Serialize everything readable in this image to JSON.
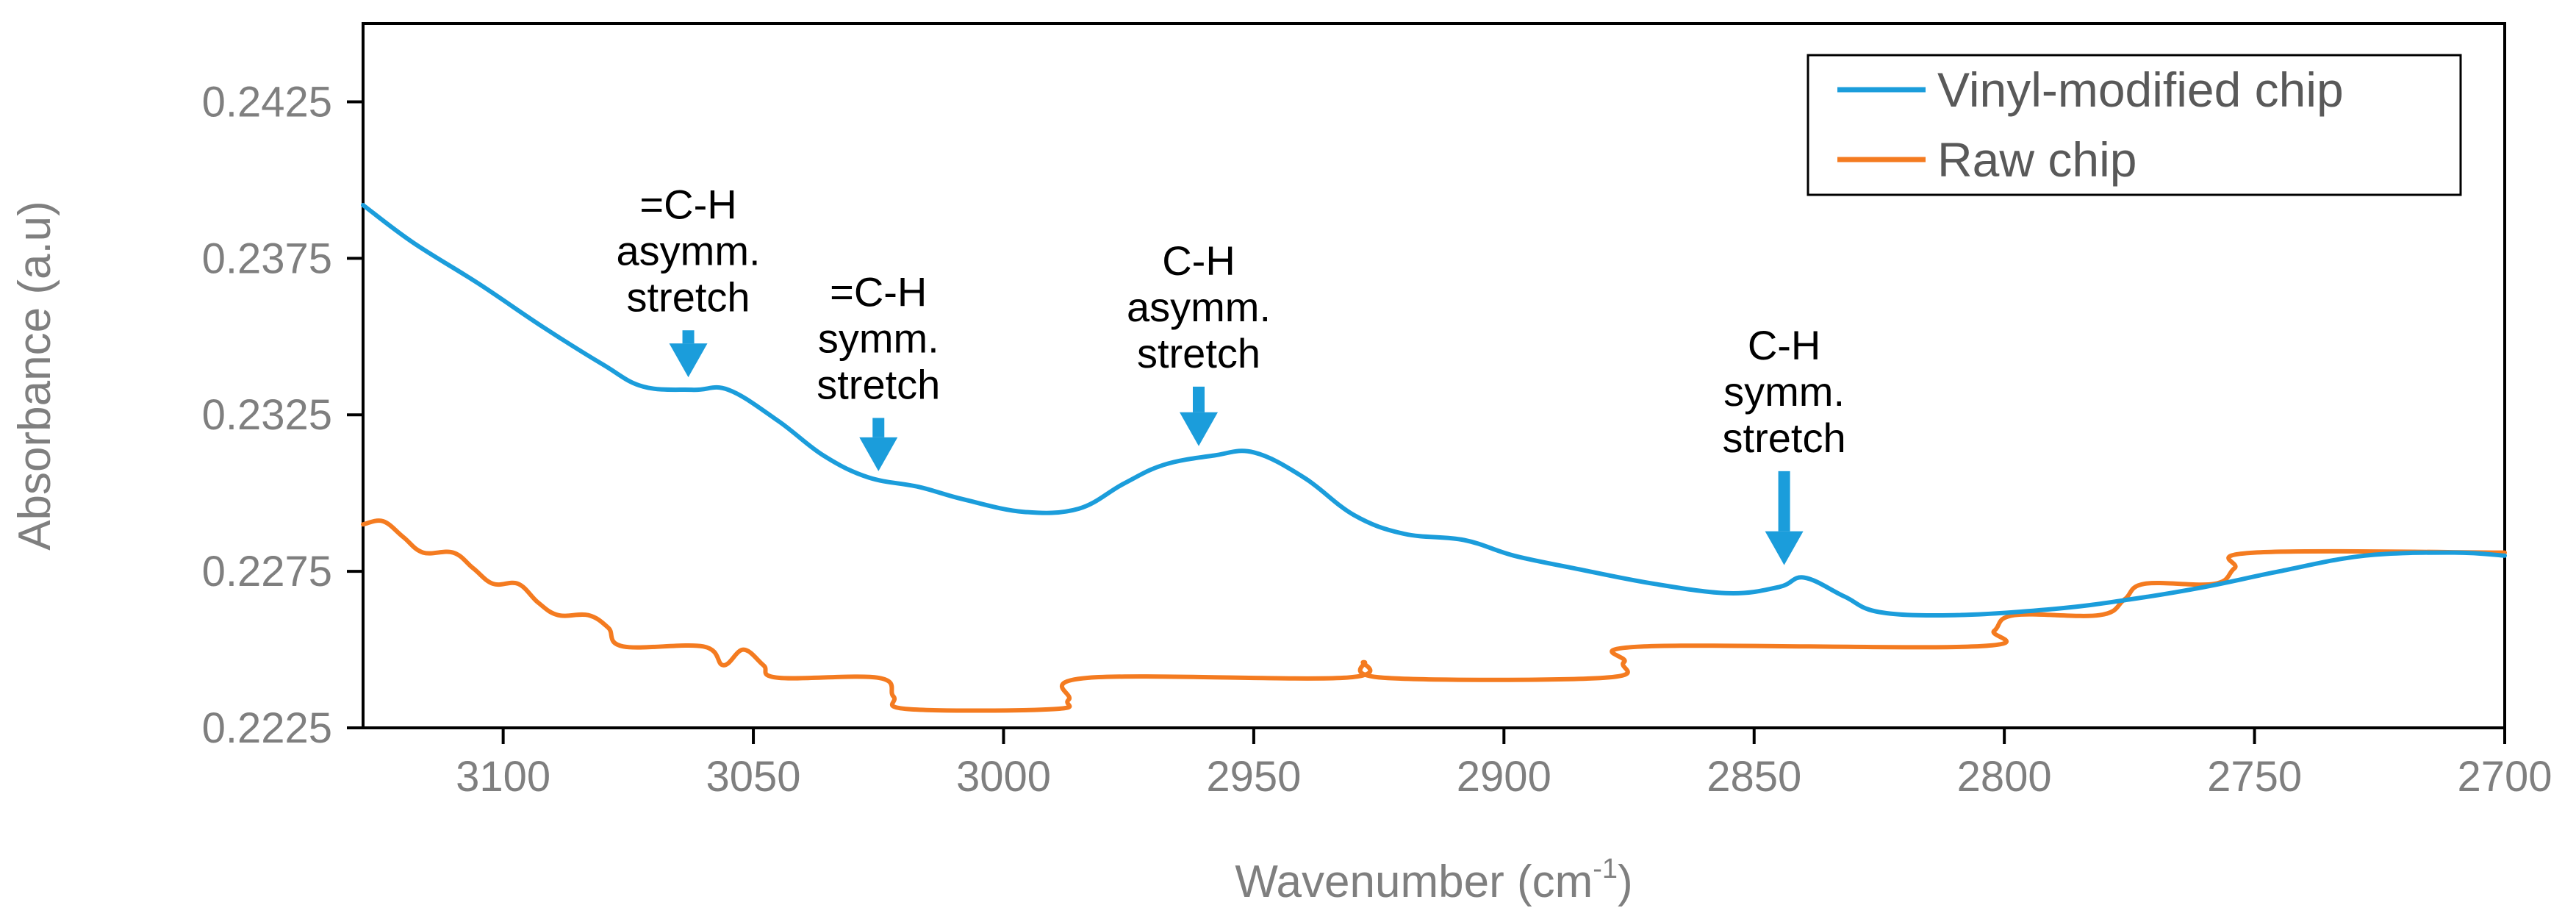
{
  "chart_data": {
    "type": "line",
    "title": "",
    "xlabel": "Wavenumber (cm",
    "xlabel_sup": "-1",
    "xlabel_tail": ")",
    "ylabel": "Absorbance (a.u)",
    "xlim": [
      3128,
      2700
    ],
    "ylim": [
      0.2225,
      0.245
    ],
    "x_ticks": [
      3100,
      3050,
      3000,
      2950,
      2900,
      2850,
      2800,
      2750,
      2700
    ],
    "y_ticks": [
      0.2225,
      0.2275,
      0.2325,
      0.2375,
      0.2425
    ],
    "y_tick_labels": [
      "0.2225",
      "0.2275",
      "0.2325",
      "0.2375",
      "0.2425"
    ],
    "legend_position": "top-right",
    "series": [
      {
        "name": "Vinyl-modified chip",
        "color": "#1b9ddb",
        "points": [
          [
            3128,
            0.2392
          ],
          [
            3118,
            0.238
          ],
          [
            3105,
            0.2367
          ],
          [
            3092,
            0.2353
          ],
          [
            3080,
            0.2341
          ],
          [
            3072,
            0.2334
          ],
          [
            3062,
            0.2333
          ],
          [
            3055,
            0.2333
          ],
          [
            3045,
            0.2323
          ],
          [
            3036,
            0.2312
          ],
          [
            3027,
            0.2305
          ],
          [
            3017,
            0.2302
          ],
          [
            3008,
            0.2298
          ],
          [
            2996,
            0.2294
          ],
          [
            2985,
            0.2295
          ],
          [
            2976,
            0.2303
          ],
          [
            2968,
            0.2309
          ],
          [
            2958,
            0.2312
          ],
          [
            2950,
            0.2313
          ],
          [
            2940,
            0.2305
          ],
          [
            2930,
            0.2293
          ],
          [
            2920,
            0.2287
          ],
          [
            2908,
            0.2285
          ],
          [
            2898,
            0.228
          ],
          [
            2886,
            0.2276
          ],
          [
            2870,
            0.2271
          ],
          [
            2855,
            0.2268
          ],
          [
            2845,
            0.227
          ],
          [
            2840,
            0.2273
          ],
          [
            2832,
            0.2267
          ],
          [
            2825,
            0.2262
          ],
          [
            2810,
            0.2261
          ],
          [
            2790,
            0.2263
          ],
          [
            2775,
            0.2266
          ],
          [
            2760,
            0.227
          ],
          [
            2745,
            0.2275
          ],
          [
            2728,
            0.228
          ],
          [
            2710,
            0.2281
          ],
          [
            2700,
            0.228
          ]
        ]
      },
      {
        "name": "Raw chip",
        "color": "#f47b20",
        "points": [
          [
            3128,
            0.229
          ],
          [
            3124,
            0.2291
          ],
          [
            3120,
            0.2286
          ],
          [
            3116,
            0.2281
          ],
          [
            3110,
            0.2281
          ],
          [
            3106,
            0.2276
          ],
          [
            3102,
            0.2271
          ],
          [
            3097,
            0.2271
          ],
          [
            3093,
            0.2265
          ],
          [
            3089,
            0.2261
          ],
          [
            3083,
            0.2261
          ],
          [
            3079,
            0.2257
          ],
          [
            3076,
            0.2251
          ],
          [
            3060,
            0.2251
          ],
          [
            3056,
            0.2245
          ],
          [
            3052,
            0.225
          ],
          [
            3048,
            0.2245
          ],
          [
            3045,
            0.2241
          ],
          [
            3025,
            0.2241
          ],
          [
            3022,
            0.2235
          ],
          [
            3019,
            0.2231
          ],
          [
            2990,
            0.2231
          ],
          [
            2987,
            0.2234
          ],
          [
            2983,
            0.2241
          ],
          [
            2932,
            0.2241
          ],
          [
            2928,
            0.2246
          ],
          [
            2924,
            0.2241
          ],
          [
            2880,
            0.2241
          ],
          [
            2876,
            0.2246
          ],
          [
            2872,
            0.2251
          ],
          [
            2806,
            0.2251
          ],
          [
            2802,
            0.2256
          ],
          [
            2798,
            0.2261
          ],
          [
            2781,
            0.2261
          ],
          [
            2776,
            0.2266
          ],
          [
            2772,
            0.2271
          ],
          [
            2758,
            0.2271
          ],
          [
            2754,
            0.2276
          ],
          [
            2750,
            0.2281
          ],
          [
            2700,
            0.2281
          ]
        ]
      }
    ],
    "annotations": [
      {
        "lines": [
          "=C-H",
          "asymm.",
          "stretch"
        ],
        "x": 3063,
        "arrow_top": 0.2352,
        "arrow_tip": 0.2337
      },
      {
        "lines": [
          "=C-H",
          "symm.",
          "stretch"
        ],
        "x": 3025,
        "arrow_top": 0.2324,
        "arrow_tip": 0.2307
      },
      {
        "lines": [
          "C-H",
          "asymm.",
          "stretch"
        ],
        "x": 2961,
        "arrow_top": 0.2334,
        "arrow_tip": 0.2315
      },
      {
        "lines": [
          "C-H",
          "symm.",
          "stretch"
        ],
        "x": 2844,
        "arrow_top": 0.2307,
        "arrow_tip": 0.2277
      }
    ]
  }
}
